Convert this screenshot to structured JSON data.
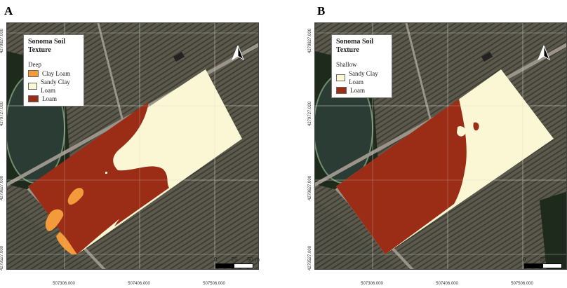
{
  "panels": [
    {
      "letter": "A",
      "legend_title": "Sonoma Soil Texture",
      "depth": "Deep",
      "entries": [
        {
          "label": "Clay Loam",
          "color": "#f39b3a"
        },
        {
          "label": "Sandy Clay Loam",
          "color": "#fbf6d3"
        },
        {
          "label": "Loam",
          "color": "#9b2d17"
        }
      ],
      "scale": {
        "labels": [
          "0",
          "25",
          "50 m"
        ]
      },
      "x_ticks": [
        "507306.000",
        "507406.000",
        "507506.000"
      ],
      "y_ticks": [
        "4279827.000",
        "4279727.000",
        "4279627.000",
        "4279527.000"
      ]
    },
    {
      "letter": "B",
      "legend_title": "Sonoma Soil Texture",
      "depth": "Shallow",
      "entries": [
        {
          "label": "Sandy Clay Loam",
          "color": "#fbf6d3"
        },
        {
          "label": "Loam",
          "color": "#9b2d17"
        }
      ],
      "scale": {
        "labels": [
          "0",
          "25",
          "50 m"
        ]
      },
      "x_ticks": [
        "507306.000",
        "507406.000",
        "507506.000"
      ],
      "y_ticks": [
        "4279827.000",
        "4279727.000",
        "4279627.000",
        "4279527.000"
      ]
    }
  ],
  "colors": {
    "vineyard": "#5b5a4c",
    "vineyard_row": "#3f3e34",
    "pond": "#2a3c33",
    "trees": "#1e2a1c",
    "road": "#9a948a",
    "grid": "#cfcfcf"
  }
}
